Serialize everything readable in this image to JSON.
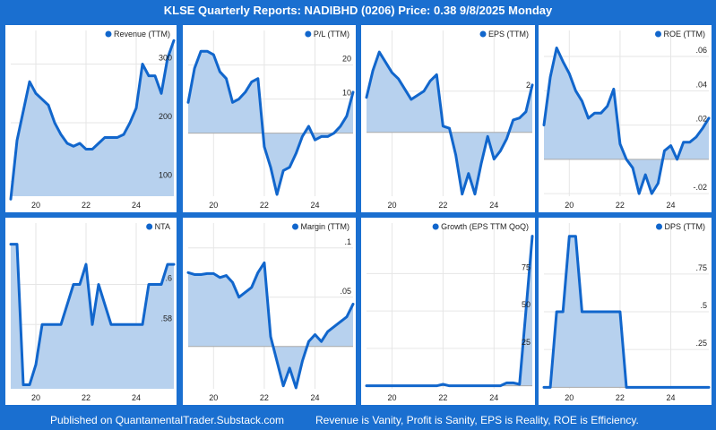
{
  "header": {
    "title": "KLSE Quarterly Reports: NADIBHD (0206)  Price: 0.38  9/8/2025 Monday"
  },
  "footer": {
    "left": "Published on QuantamentalTrader.Substack.com",
    "right": "Revenue is Vanity, Profit is Sanity, EPS is Reality, ROE is Efficiency."
  },
  "colors": {
    "frame": "#1a6fd0",
    "line": "#1166cc",
    "fill": "#b7d1ee",
    "zero": "#aaaaaa",
    "grid": "#e6e6e6"
  },
  "chart_data": [
    {
      "type": "area",
      "legend": "Revenue (TTM)",
      "x": [
        19.0,
        19.25,
        19.5,
        19.75,
        20.0,
        20.25,
        20.5,
        20.75,
        21.0,
        21.25,
        21.5,
        21.75,
        22.0,
        22.25,
        22.5,
        22.75,
        23.0,
        23.25,
        23.5,
        23.75,
        24.0,
        24.25,
        24.5,
        24.75,
        25.0,
        25.25,
        25.5
      ],
      "values": [
        70,
        170,
        220,
        270,
        250,
        240,
        230,
        200,
        180,
        165,
        160,
        165,
        155,
        155,
        165,
        175,
        175,
        175,
        180,
        200,
        225,
        300,
        280,
        280,
        250,
        310,
        340
      ],
      "xticks": [
        20,
        22,
        24
      ],
      "yticks": [
        {
          "value": 100,
          "label": "100"
        },
        {
          "value": 200,
          "label": "200"
        },
        {
          "value": 300,
          "label": "300"
        }
      ],
      "ylim": [
        75,
        345
      ]
    },
    {
      "type": "area",
      "legend": "P/L (TTM)",
      "x": [
        19.0,
        19.25,
        19.5,
        19.75,
        20.0,
        20.25,
        20.5,
        20.75,
        21.0,
        21.25,
        21.5,
        21.75,
        22.0,
        22.25,
        22.5,
        22.75,
        23.0,
        23.25,
        23.5,
        23.75,
        24.0,
        24.25,
        24.5,
        24.75,
        25.0,
        25.25,
        25.5
      ],
      "values": [
        9,
        19,
        24,
        24,
        23,
        18,
        16,
        9,
        10,
        12,
        15,
        16,
        -4,
        -10,
        -18,
        -11,
        -10,
        -6,
        -1,
        2,
        -2,
        -1,
        -1,
        0,
        2,
        5,
        12
      ],
      "xticks": [
        20,
        22,
        24
      ],
      "yticks": [
        {
          "value": 10,
          "label": "10"
        },
        {
          "value": 20,
          "label": "20"
        }
      ],
      "ylim": [
        -18.5,
        28
      ]
    },
    {
      "type": "area",
      "legend": "EPS (TTM)",
      "x": [
        19.0,
        19.25,
        19.5,
        19.75,
        20.0,
        20.25,
        20.5,
        20.75,
        21.0,
        21.25,
        21.5,
        21.75,
        22.0,
        22.25,
        22.5,
        22.75,
        23.0,
        23.25,
        23.5,
        23.75,
        24.0,
        24.25,
        24.5,
        24.75,
        25.0,
        25.25,
        25.5
      ],
      "values": [
        1.7,
        3.0,
        3.9,
        3.4,
        2.9,
        2.6,
        2.1,
        1.6,
        1.8,
        2.0,
        2.5,
        2.8,
        0.3,
        0.2,
        -1.1,
        -3.0,
        -2.0,
        -3.0,
        -1.5,
        -0.2,
        -1.3,
        -0.9,
        -0.3,
        0.6,
        0.7,
        1.0,
        2.3
      ],
      "xticks": [
        20,
        22,
        24
      ],
      "yticks": [
        {
          "value": 2,
          "label": "2"
        }
      ],
      "ylim": [
        -3.1,
        4.6
      ]
    },
    {
      "type": "area",
      "legend": "ROE (TTM)",
      "x": [
        19.0,
        19.25,
        19.5,
        19.75,
        20.0,
        20.25,
        20.5,
        20.75,
        21.0,
        21.25,
        21.5,
        21.75,
        22.0,
        22.25,
        22.5,
        22.75,
        23.0,
        23.25,
        23.5,
        23.75,
        24.0,
        24.25,
        24.5,
        24.75,
        25.0,
        25.25,
        25.5
      ],
      "values": [
        0.02,
        0.048,
        0.065,
        0.057,
        0.05,
        0.04,
        0.034,
        0.024,
        0.027,
        0.027,
        0.031,
        0.041,
        0.009,
        0.0,
        -0.005,
        -0.02,
        -0.009,
        -0.02,
        -0.014,
        0.005,
        0.008,
        0.0,
        0.01,
        0.01,
        0.013,
        0.018,
        0.024
      ],
      "xticks": [
        20,
        22,
        24
      ],
      "yticks": [
        {
          "value": -0.02,
          "label": "-.02"
        },
        {
          "value": 0.02,
          "label": ".02"
        },
        {
          "value": 0.04,
          "label": ".04"
        },
        {
          "value": 0.06,
          "label": ".06"
        }
      ],
      "ylim": [
        -0.0215,
        0.071
      ]
    },
    {
      "type": "area",
      "legend": "NTA",
      "x": [
        19.0,
        19.25,
        19.5,
        19.75,
        20.0,
        20.25,
        20.5,
        20.75,
        21.0,
        21.25,
        21.5,
        21.75,
        22.0,
        22.25,
        22.5,
        22.75,
        23.0,
        23.25,
        23.5,
        23.75,
        24.0,
        24.25,
        24.5,
        24.75,
        25.0,
        25.25,
        25.5
      ],
      "values": [
        0.62,
        0.62,
        0.55,
        0.55,
        0.56,
        0.58,
        0.58,
        0.58,
        0.58,
        0.59,
        0.6,
        0.6,
        0.61,
        0.58,
        0.6,
        0.59,
        0.58,
        0.58,
        0.58,
        0.58,
        0.58,
        0.58,
        0.6,
        0.6,
        0.6,
        0.61,
        0.61
      ],
      "xticks": [
        20,
        22,
        24
      ],
      "yticks": [
        {
          "value": 0.58,
          "label": ".58"
        },
        {
          "value": 0.6,
          "label": ".6"
        }
      ],
      "ylim": [
        0.548,
        0.627
      ]
    },
    {
      "type": "area",
      "legend": "Margin (TTM)",
      "x": [
        19.0,
        19.25,
        19.5,
        19.75,
        20.0,
        20.25,
        20.5,
        20.75,
        21.0,
        21.25,
        21.5,
        21.75,
        22.0,
        22.25,
        22.5,
        22.75,
        23.0,
        23.25,
        23.5,
        23.75,
        24.0,
        24.25,
        24.5,
        24.75,
        25.0,
        25.25,
        25.5
      ],
      "values": [
        0.075,
        0.073,
        0.073,
        0.074,
        0.074,
        0.07,
        0.072,
        0.065,
        0.05,
        0.055,
        0.06,
        0.075,
        0.085,
        0.01,
        -0.015,
        -0.04,
        -0.022,
        -0.042,
        -0.015,
        0.005,
        0.012,
        0.005,
        0.015,
        0.02,
        0.025,
        0.03,
        0.043
      ],
      "xticks": [
        20,
        22,
        24
      ],
      "yticks": [
        {
          "value": 0.05,
          "label": ".05"
        },
        {
          "value": 0.1,
          "label": ".1"
        }
      ],
      "ylim": [
        -0.043,
        0.118
      ]
    },
    {
      "type": "area",
      "legend": "Growth (EPS TTM QoQ)",
      "x": [
        19.0,
        19.25,
        19.5,
        19.75,
        20.0,
        20.25,
        20.5,
        20.75,
        21.0,
        21.25,
        21.5,
        21.75,
        22.0,
        22.25,
        22.5,
        22.75,
        23.0,
        23.25,
        23.5,
        23.75,
        24.0,
        24.25,
        24.5,
        24.75,
        25.0,
        25.25,
        25.5
      ],
      "values": [
        0,
        0,
        0,
        0,
        0,
        0,
        0,
        0,
        0,
        0,
        0,
        0,
        1,
        0,
        0,
        0,
        0,
        0,
        0,
        0,
        0,
        0,
        2,
        2,
        1,
        50,
        100
      ],
      "xticks": [
        20,
        22,
        24
      ],
      "yticks": [
        {
          "value": 25,
          "label": "25"
        },
        {
          "value": 50,
          "label": "50"
        },
        {
          "value": 75,
          "label": "75"
        }
      ],
      "ylim": [
        -2,
        104
      ]
    },
    {
      "type": "area",
      "legend": "DPS (TTM)",
      "x": [
        19.0,
        19.25,
        19.5,
        19.75,
        20.0,
        20.25,
        20.5,
        20.75,
        21.0,
        21.25,
        21.5,
        21.75,
        22.0,
        22.25,
        22.5,
        22.75,
        23.0,
        23.25,
        23.5,
        23.75,
        24.0,
        24.25,
        24.5,
        24.75,
        25.0,
        25.25,
        25.5
      ],
      "values": [
        0,
        0,
        0.5,
        0.5,
        1,
        1,
        0.5,
        0.5,
        0.5,
        0.5,
        0.5,
        0.5,
        0.5,
        0,
        0,
        0,
        0,
        0,
        0,
        0,
        0,
        0,
        0,
        0,
        0,
        0,
        0
      ],
      "xticks": [
        20,
        22,
        24
      ],
      "yticks": [
        {
          "value": 0.25,
          "label": ".25"
        },
        {
          "value": 0.5,
          "label": ".5"
        },
        {
          "value": 0.75,
          "label": ".75"
        }
      ],
      "ylim": [
        -0.01,
        1.04
      ]
    }
  ]
}
